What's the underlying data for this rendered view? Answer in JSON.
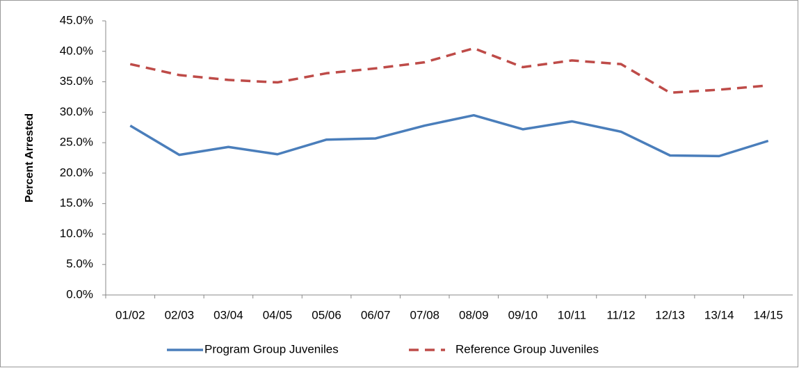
{
  "chart_data": {
    "type": "line",
    "y_label": "Percent Arrested",
    "categories": [
      "01/02",
      "02/03",
      "03/04",
      "04/05",
      "05/06",
      "06/07",
      "07/08",
      "08/09",
      "09/10",
      "10/11",
      "11/12",
      "12/13",
      "13/14",
      "14/15"
    ],
    "series": [
      {
        "name": "Program Group Juveniles",
        "color": "#4a7ebb",
        "dash": "solid",
        "values": [
          27.8,
          23.0,
          24.3,
          23.1,
          25.5,
          25.7,
          27.8,
          29.5,
          27.2,
          28.5,
          26.8,
          22.9,
          22.8,
          25.3
        ]
      },
      {
        "name": "Reference Group Juveniles",
        "color": "#be4b48",
        "dash": "dashed",
        "values": [
          37.9,
          36.1,
          35.3,
          34.9,
          36.4,
          37.2,
          38.2,
          40.5,
          37.4,
          38.5,
          37.9,
          33.2,
          33.7,
          34.4
        ]
      }
    ],
    "ylim": [
      0,
      45
    ],
    "yticks": [
      {
        "value": 0,
        "label": "0.0%"
      },
      {
        "value": 5,
        "label": "5.0%"
      },
      {
        "value": 10,
        "label": "10.0%"
      },
      {
        "value": 15,
        "label": "15.0%"
      },
      {
        "value": 20,
        "label": "20.0%"
      },
      {
        "value": 25,
        "label": "25.0%"
      },
      {
        "value": 30,
        "label": "30.0%"
      },
      {
        "value": 35,
        "label": "35.0%"
      },
      {
        "value": 40,
        "label": "40.0%"
      },
      {
        "value": 45,
        "label": "45.0%"
      }
    ],
    "grid": false,
    "legend": "bottom"
  }
}
